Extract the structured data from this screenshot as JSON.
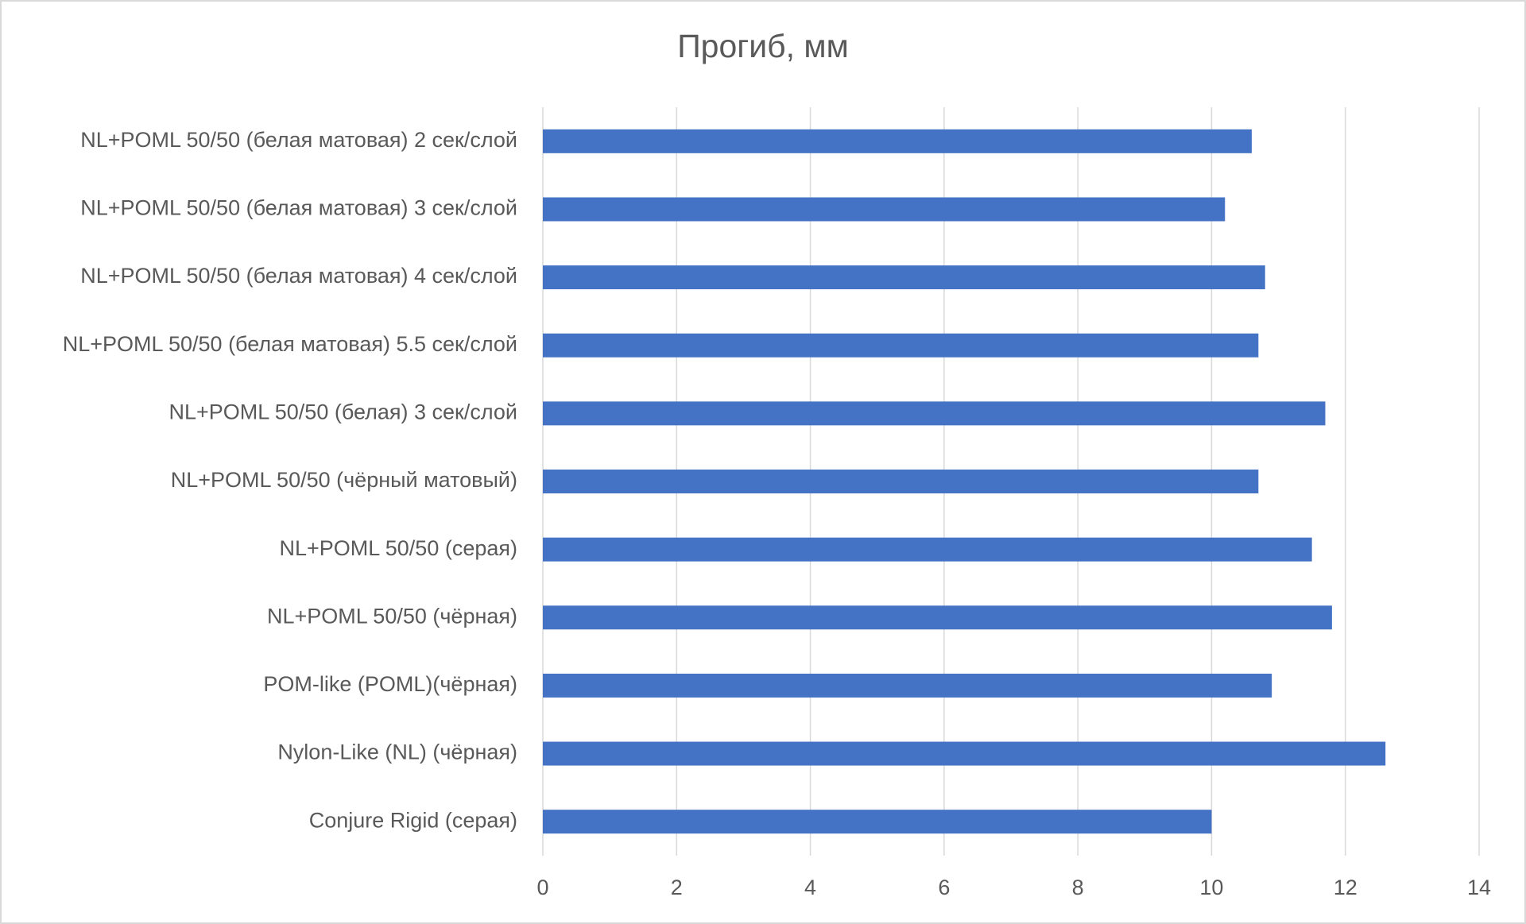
{
  "chart_data": {
    "type": "bar",
    "orientation": "horizontal",
    "title": "Прогиб, мм",
    "categories": [
      "NL+POML 50/50 (белая матовая) 2 сек/слой",
      "NL+POML 50/50 (белая матовая) 3 сек/слой",
      "NL+POML 50/50 (белая матовая) 4 сек/слой",
      "NL+POML 50/50 (белая матовая) 5.5 сек/слой",
      "NL+POML 50/50 (белая) 3 сек/слой",
      "NL+POML 50/50 (чёрный матовый)",
      "NL+POML 50/50 (серая)",
      "NL+POML 50/50 (чёрная)",
      "POM-like (POML)(чёрная)",
      "Nylon-Like (NL) (чёрная)",
      "Conjure Rigid (серая)"
    ],
    "values": [
      10.6,
      10.2,
      10.8,
      10.7,
      11.7,
      10.7,
      11.5,
      11.8,
      10.9,
      12.6,
      10.0
    ],
    "color": "#4472c4",
    "xlim": [
      0,
      14
    ],
    "xticks": [
      0,
      2,
      4,
      6,
      8,
      10,
      12,
      14
    ],
    "grid": true
  }
}
